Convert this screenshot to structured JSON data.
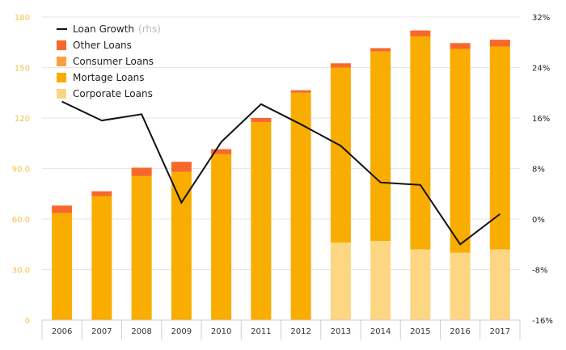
{
  "chart_data": {
    "type": "bar",
    "stacked": true,
    "categories": [
      "2006",
      "2007",
      "2008",
      "2009",
      "2010",
      "2011",
      "2012",
      "2013",
      "2014",
      "2015",
      "2016",
      "2017"
    ],
    "series": [
      {
        "name": "Corporate Loans",
        "color": "#fdd683",
        "values": [
          0,
          0,
          0,
          0,
          0,
          0,
          0,
          46,
          47,
          42,
          40,
          42
        ]
      },
      {
        "name": "Mortage Loans",
        "color": "#f8ad00",
        "values": [
          63.5,
          73.5,
          85.5,
          88,
          98.5,
          117.5,
          135,
          104,
          112.5,
          126.5,
          121,
          120.5
        ]
      },
      {
        "name": "Consumer Loans",
        "color": "#f9a23f",
        "values": [
          0,
          0,
          0,
          0,
          0,
          0,
          0,
          0,
          0,
          0,
          0,
          0
        ]
      },
      {
        "name": "Other Loans",
        "color": "#f7682b",
        "values": [
          4.5,
          3,
          5,
          6,
          3,
          2.5,
          1.5,
          2.5,
          2,
          3.5,
          3.5,
          4
        ]
      }
    ],
    "line_series": {
      "name": "Loan Growth",
      "name_suffix": "(rhs)",
      "axis": "right",
      "color": "#111111",
      "values": [
        18.6,
        15.6,
        16.6,
        2.6,
        12.2,
        18.2,
        15.0,
        11.6,
        5.8,
        5.4,
        -4.0,
        0.8
      ]
    },
    "left_axis": {
      "ticks": [
        "0",
        "30.0",
        "60.0",
        "90.0",
        "120",
        "150",
        "180"
      ],
      "ylim": [
        0,
        180
      ]
    },
    "right_axis": {
      "ticks": [
        "-16%",
        "-8%",
        "0%",
        "8%",
        "16%",
        "24%",
        "32%"
      ],
      "ylim": [
        -16,
        32
      ]
    },
    "legend_order": [
      "Loan Growth",
      "Other Loans",
      "Consumer Loans",
      "Mortage Loans",
      "Corporate Loans"
    ],
    "legend_position": "top-left",
    "grid": true
  }
}
